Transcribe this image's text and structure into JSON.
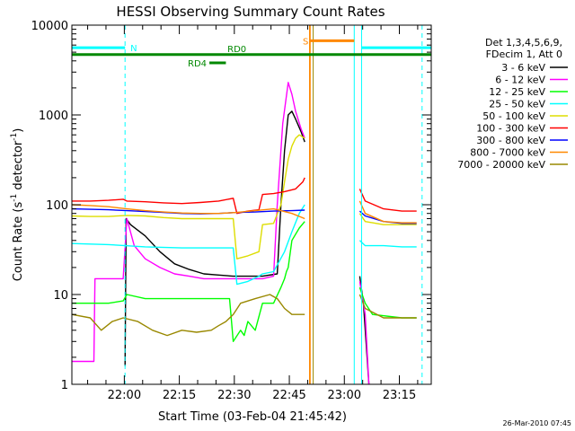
{
  "chart_data": {
    "type": "line",
    "title": "HESSI Observing Summary Count Rates",
    "xlabel": "Start Time (03-Feb-04 21:45:42)",
    "ylabel_main": "Count Rate (s",
    "ylabel_sup1": "-1",
    "ylabel_mid": " detector",
    "ylabel_sup2": "-1",
    "ylabel_end": ")",
    "y_scale": "log",
    "ylim": [
      1,
      10000
    ],
    "xlim_minutes": [
      0,
      98
    ],
    "x_ticks": [
      {
        "label": "22:00",
        "min": 14.3
      },
      {
        "label": "22:15",
        "min": 29.3
      },
      {
        "label": "22:30",
        "min": 44.3
      },
      {
        "label": "22:45",
        "min": 59.3
      },
      {
        "label": "23:00",
        "min": 74.3
      },
      {
        "label": "23:15",
        "min": 89.3
      }
    ],
    "y_ticks": [
      {
        "label": "1",
        "v": 1
      },
      {
        "label": "10",
        "v": 10
      },
      {
        "label": "100",
        "v": 100
      },
      {
        "label": "1000",
        "v": 1000
      },
      {
        "label": "10000",
        "v": 10000
      }
    ],
    "legend_header": [
      "Det 1,3,4,5,6,9,",
      "FDecim 1, Att 0"
    ],
    "legend_placement": "right",
    "series": [
      {
        "name": "3 - 6 keV",
        "color": "#000000",
        "points": [
          [
            14.5,
            1.6
          ],
          [
            14.8,
            70
          ],
          [
            16,
            60
          ],
          [
            20,
            45
          ],
          [
            24,
            30
          ],
          [
            28,
            22
          ],
          [
            32,
            19
          ],
          [
            36,
            17
          ],
          [
            40,
            16.5
          ],
          [
            44,
            16
          ],
          [
            48,
            16
          ],
          [
            52,
            16
          ],
          [
            56,
            17
          ],
          [
            57,
            100
          ],
          [
            58,
            400
          ],
          [
            59,
            1000
          ],
          [
            60,
            1100
          ],
          [
            61,
            900
          ],
          [
            62.5,
            650
          ],
          [
            63.5,
            500
          ],
          [
            65,
            null
          ],
          [
            78.5,
            16
          ],
          [
            79.5,
            8
          ],
          [
            80.5,
            2
          ],
          [
            81,
            1
          ]
        ]
      },
      {
        "name": "6 - 12 keV",
        "color": "#ff00ff",
        "points": [
          [
            0,
            1.8
          ],
          [
            6,
            1.8
          ],
          [
            6.3,
            15
          ],
          [
            14,
            15
          ],
          [
            15,
            70
          ],
          [
            17,
            35
          ],
          [
            20,
            25
          ],
          [
            24,
            20
          ],
          [
            28,
            17
          ],
          [
            32,
            16
          ],
          [
            36,
            15
          ],
          [
            40,
            15
          ],
          [
            44,
            15
          ],
          [
            48,
            15
          ],
          [
            52,
            15
          ],
          [
            55,
            16
          ],
          [
            56,
            100
          ],
          [
            57.5,
            800
          ],
          [
            59,
            2300
          ],
          [
            60,
            1700
          ],
          [
            61,
            1100
          ],
          [
            62.5,
            700
          ],
          [
            63.5,
            550
          ],
          [
            65,
            null
          ],
          [
            78.5,
            14
          ],
          [
            80,
            6
          ],
          [
            81,
            1
          ]
        ]
      },
      {
        "name": "12 - 25 keV",
        "color": "#00ff00",
        "points": [
          [
            0,
            8
          ],
          [
            10,
            8
          ],
          [
            14,
            8.5
          ],
          [
            15,
            10
          ],
          [
            20,
            9
          ],
          [
            30,
            9
          ],
          [
            40,
            9
          ],
          [
            43,
            9
          ],
          [
            44,
            3
          ],
          [
            46,
            4
          ],
          [
            47,
            3.5
          ],
          [
            48,
            5
          ],
          [
            50,
            4
          ],
          [
            52,
            8
          ],
          [
            55,
            8
          ],
          [
            57,
            12
          ],
          [
            58,
            15
          ],
          [
            58.5,
            18
          ],
          [
            59,
            20
          ],
          [
            60,
            40
          ],
          [
            62,
            55
          ],
          [
            63.5,
            65
          ],
          [
            65,
            null
          ],
          [
            78.5,
            12
          ],
          [
            80,
            8
          ],
          [
            82,
            6
          ],
          [
            90,
            5.5
          ],
          [
            94,
            5.5
          ]
        ]
      },
      {
        "name": "25 - 50 keV",
        "color": "#00ffff",
        "points": [
          [
            0,
            37
          ],
          [
            10,
            36
          ],
          [
            20,
            34
          ],
          [
            30,
            33
          ],
          [
            40,
            33
          ],
          [
            44,
            33
          ],
          [
            45,
            13
          ],
          [
            48,
            14
          ],
          [
            51,
            16
          ],
          [
            52,
            17
          ],
          [
            55,
            18
          ],
          [
            58,
            30
          ],
          [
            60,
            50
          ],
          [
            62,
            80
          ],
          [
            63.5,
            100
          ],
          [
            65,
            null
          ],
          [
            78.5,
            40
          ],
          [
            80,
            35
          ],
          [
            85,
            35
          ],
          [
            90,
            34
          ],
          [
            94,
            34
          ]
        ]
      },
      {
        "name": "50 - 100 keV",
        "color": "#dddd00",
        "points": [
          [
            0,
            75
          ],
          [
            5,
            74
          ],
          [
            10,
            74
          ],
          [
            15,
            76
          ],
          [
            20,
            75
          ],
          [
            25,
            72
          ],
          [
            30,
            70
          ],
          [
            35,
            70
          ],
          [
            40,
            70
          ],
          [
            44,
            70
          ],
          [
            45,
            25
          ],
          [
            48,
            27
          ],
          [
            51,
            30
          ],
          [
            52,
            60
          ],
          [
            55,
            62
          ],
          [
            57,
            100
          ],
          [
            58,
            180
          ],
          [
            59,
            320
          ],
          [
            60,
            450
          ],
          [
            61,
            550
          ],
          [
            62,
            600
          ],
          [
            63.5,
            550
          ],
          [
            65,
            null
          ],
          [
            78.5,
            80
          ],
          [
            80,
            65
          ],
          [
            85,
            60
          ],
          [
            94,
            60
          ]
        ]
      },
      {
        "name": "100 - 300 keV",
        "color": "#ff0000",
        "points": [
          [
            0,
            110
          ],
          [
            5,
            110
          ],
          [
            10,
            112
          ],
          [
            14,
            115
          ],
          [
            15,
            110
          ],
          [
            20,
            108
          ],
          [
            25,
            105
          ],
          [
            30,
            103
          ],
          [
            35,
            106
          ],
          [
            40,
            110
          ],
          [
            44,
            118
          ],
          [
            45,
            80
          ],
          [
            48,
            85
          ],
          [
            51,
            88
          ],
          [
            52,
            130
          ],
          [
            55,
            133
          ],
          [
            58,
            140
          ],
          [
            61,
            150
          ],
          [
            63,
            180
          ],
          [
            63.5,
            200
          ],
          [
            65,
            null
          ],
          [
            78.5,
            150
          ],
          [
            80,
            110
          ],
          [
            85,
            90
          ],
          [
            90,
            85
          ],
          [
            94,
            85
          ]
        ]
      },
      {
        "name": "300 - 800 keV",
        "color": "#0000ff",
        "points": [
          [
            0,
            90
          ],
          [
            5,
            89
          ],
          [
            10,
            88
          ],
          [
            15,
            86
          ],
          [
            20,
            84
          ],
          [
            25,
            82
          ],
          [
            30,
            80
          ],
          [
            35,
            79
          ],
          [
            40,
            80
          ],
          [
            45,
            82
          ],
          [
            50,
            83
          ],
          [
            55,
            85
          ],
          [
            60,
            86
          ],
          [
            63.5,
            87
          ],
          [
            65,
            null
          ],
          [
            78.5,
            85
          ],
          [
            80,
            75
          ],
          [
            85,
            65
          ],
          [
            90,
            62
          ],
          [
            94,
            62
          ]
        ]
      },
      {
        "name": "800 - 7000 keV",
        "color": "#ff8800",
        "points": [
          [
            0,
            100
          ],
          [
            5,
            98
          ],
          [
            10,
            95
          ],
          [
            15,
            90
          ],
          [
            20,
            86
          ],
          [
            25,
            83
          ],
          [
            30,
            81
          ],
          [
            35,
            80
          ],
          [
            40,
            80
          ],
          [
            45,
            82
          ],
          [
            50,
            86
          ],
          [
            55,
            90
          ],
          [
            60,
            80
          ],
          [
            63.5,
            70
          ],
          [
            65,
            null
          ],
          [
            78.5,
            110
          ],
          [
            80,
            80
          ],
          [
            85,
            65
          ],
          [
            90,
            63
          ],
          [
            94,
            63
          ]
        ]
      },
      {
        "name": "7000 - 20000 keV",
        "color": "#998800",
        "points": [
          [
            0,
            6
          ],
          [
            5,
            5.5
          ],
          [
            8,
            4
          ],
          [
            11,
            5
          ],
          [
            14,
            5.5
          ],
          [
            18,
            5
          ],
          [
            22,
            4
          ],
          [
            26,
            3.5
          ],
          [
            30,
            4
          ],
          [
            34,
            3.8
          ],
          [
            38,
            4
          ],
          [
            40,
            4.5
          ],
          [
            42,
            5
          ],
          [
            44,
            6
          ],
          [
            46,
            8
          ],
          [
            50,
            9
          ],
          [
            54,
            10
          ],
          [
            56,
            9
          ],
          [
            58,
            7
          ],
          [
            60,
            6
          ],
          [
            63.5,
            6
          ],
          [
            65,
            null
          ],
          [
            78.5,
            10
          ],
          [
            80,
            7
          ],
          [
            85,
            5.5
          ],
          [
            90,
            5.5
          ],
          [
            94,
            5.5
          ]
        ]
      }
    ],
    "attenuator_lines": [
      {
        "min": 64.8,
        "v": 10000,
        "color": "#ff8800"
      },
      {
        "min": 65.8,
        "v": 10000,
        "color": "#998800"
      }
    ],
    "flag_bars": [
      {
        "label": "N",
        "color": "#00ffff",
        "segments": [
          [
            0,
            14.5
          ],
          [
            79,
            98
          ]
        ],
        "value": 5600
      },
      {
        "label": "S",
        "color": "#ff8800",
        "segments": [
          [
            65,
            77
          ]
        ],
        "value": 6700
      },
      {
        "label": "RD0",
        "color": "#008800",
        "segments": [
          [
            0,
            98
          ]
        ],
        "value": 4700
      },
      {
        "label": "RD4",
        "color": "#008800",
        "segments": [
          [
            37.5,
            42
          ]
        ],
        "value": 3800
      }
    ],
    "vlines": [
      {
        "min": 14.5,
        "color": "#00ffff",
        "style": "dashed"
      },
      {
        "min": 77,
        "color": "#00ffff",
        "style": "solid"
      },
      {
        "min": 65,
        "color": "#ff8800",
        "style": "solid"
      },
      {
        "min": 79,
        "color": "#00ffff",
        "style": "solid"
      },
      {
        "min": 95.5,
        "color": "#00ffff",
        "style": "dashed"
      }
    ],
    "footer_date": "26-Mar-2010 07:45"
  }
}
